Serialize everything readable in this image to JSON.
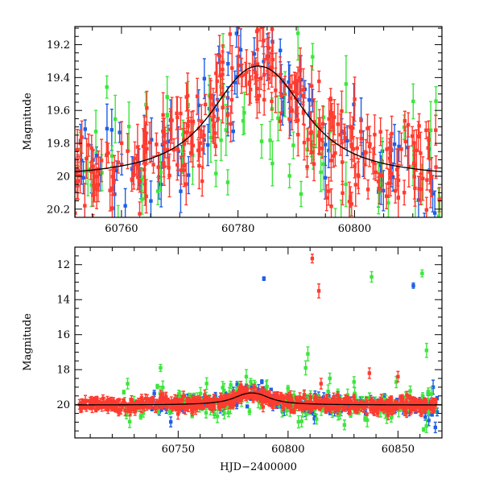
{
  "chart_data": [
    {
      "type": "scatter",
      "panel": "top",
      "title": "",
      "xlabel": "",
      "ylabel": "Magnitude",
      "xlim": [
        60752,
        60815
      ],
      "ylim": [
        20.25,
        19.09
      ],
      "y_inverted": true,
      "x_ticks": [
        60760,
        60780,
        60800
      ],
      "x_tick_labels": [
        "60760",
        "60780",
        "60800"
      ],
      "y_ticks": [
        19.2,
        19.4,
        19.6,
        19.8,
        20,
        20.2
      ],
      "y_tick_labels": [
        "19.2",
        "19.4",
        "19.6",
        "19.8",
        "20",
        "20.2"
      ],
      "model_curve": {
        "color": "#000000",
        "t0": 60783.5,
        "baseline": 20.02,
        "peak": 19.33,
        "tE": 6.5
      },
      "series": [
        {
          "color": "#ff3b2f",
          "count": 300,
          "x_range": [
            60752,
            60815
          ],
          "scatter": 0.14,
          "error": [
            0.05,
            0.14
          ]
        },
        {
          "color": "#1e5fe6",
          "count": 95,
          "x_range": [
            60752,
            60815
          ],
          "scatter": 0.17,
          "error": [
            0.05,
            0.15
          ]
        },
        {
          "color": "#3ce63c",
          "count": 75,
          "x_range": [
            60752,
            60815
          ],
          "scatter": 0.28,
          "error": [
            0.06,
            0.18
          ]
        }
      ]
    },
    {
      "type": "scatter",
      "panel": "bottom",
      "title": "",
      "xlabel": "HJD−2400000",
      "ylabel": "Magnitude",
      "xlim": [
        60703,
        60870
      ],
      "ylim": [
        21.9,
        11.0
      ],
      "y_inverted": true,
      "x_ticks": [
        60750,
        60800,
        60850
      ],
      "x_tick_labels": [
        "60750",
        "60800",
        "60850"
      ],
      "y_ticks": [
        12,
        14,
        16,
        18,
        20
      ],
      "y_tick_labels": [
        "12",
        "14",
        "16",
        "18",
        "20"
      ],
      "model_curve": {
        "color": "#000000",
        "t0": 60783.5,
        "baseline": 20.02,
        "peak": 19.33,
        "tE": 6.5
      },
      "series": [
        {
          "color": "#ff3b2f",
          "count": 700,
          "x_range": [
            60705,
            60868
          ],
          "scatter": 0.2,
          "error": [
            0.05,
            0.3
          ],
          "outliers": [
            {
              "x": 60811,
              "y": 11.65,
              "err": 0.25
            },
            {
              "x": 60814,
              "y": 13.5,
              "err": 0.4
            },
            {
              "x": 60837,
              "y": 18.2,
              "err": 0.3
            },
            {
              "x": 60850,
              "y": 18.4,
              "err": 0.3
            },
            {
              "x": 60815,
              "y": 18.8,
              "err": 0.3
            }
          ]
        },
        {
          "color": "#1e5fe6",
          "count": 220,
          "x_range": [
            60735,
            60868
          ],
          "scatter": 0.3,
          "error": [
            0.05,
            0.3
          ],
          "outliers": [
            {
              "x": 60789,
              "y": 12.8,
              "err": 0.1
            },
            {
              "x": 60857,
              "y": 13.2,
              "err": 0.15
            },
            {
              "x": 60866,
              "y": 19.0,
              "err": 0.4
            },
            {
              "x": 60867,
              "y": 21.3,
              "err": 0.3
            },
            {
              "x": 60864,
              "y": 20.9,
              "err": 0.3
            },
            {
              "x": 60812,
              "y": 20.8,
              "err": 0.3
            }
          ]
        },
        {
          "color": "#3ce63c",
          "count": 200,
          "x_range": [
            60725,
            60868
          ],
          "scatter": 0.45,
          "error": [
            0.1,
            0.4
          ],
          "outliers": [
            {
              "x": 60838,
              "y": 12.7,
              "err": 0.3
            },
            {
              "x": 60861,
              "y": 12.5,
              "err": 0.2
            },
            {
              "x": 60863,
              "y": 16.9,
              "err": 0.4
            },
            {
              "x": 60809,
              "y": 17.1,
              "err": 0.4
            },
            {
              "x": 60808,
              "y": 17.9,
              "err": 0.4
            },
            {
              "x": 60742,
              "y": 17.9,
              "err": 0.2
            },
            {
              "x": 60727,
              "y": 18.8,
              "err": 0.3
            },
            {
              "x": 60781,
              "y": 18.4,
              "err": 0.4
            },
            {
              "x": 60819,
              "y": 18.5,
              "err": 0.3
            },
            {
              "x": 60830,
              "y": 18.7,
              "err": 0.3
            }
          ]
        }
      ]
    }
  ]
}
